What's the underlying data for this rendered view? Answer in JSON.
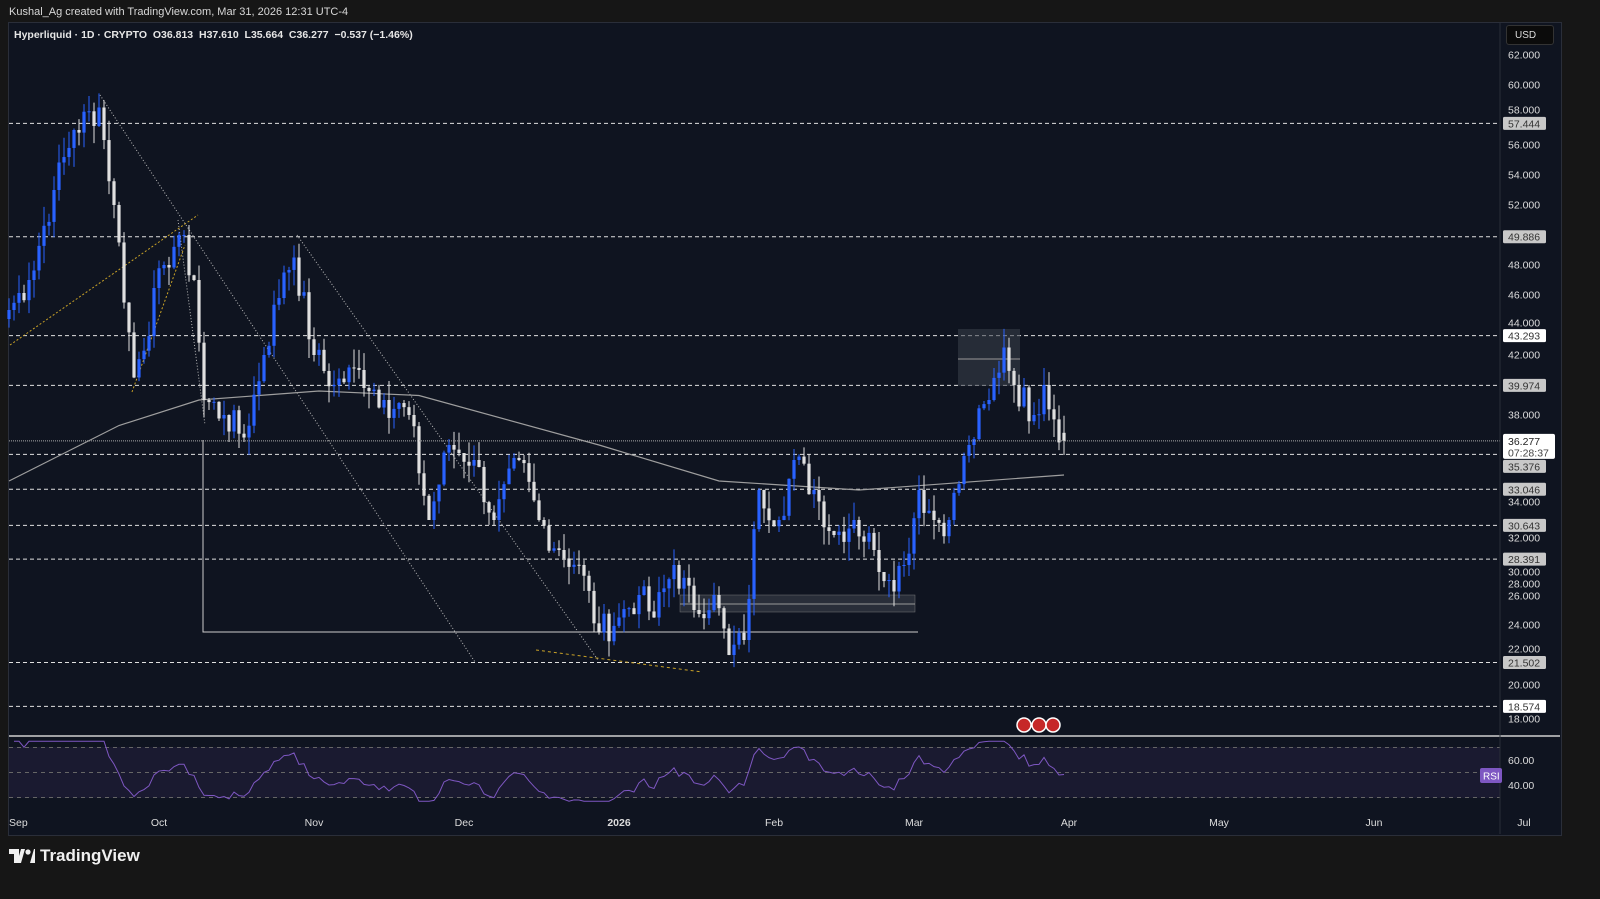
{
  "credit": "Kushal_Ag created with TradingView.com, Mar 31, 2026 12:31 UTC-4",
  "legend": {
    "symbol": "Hyperliquid · 1D · CRYPTO",
    "open": "O36.813",
    "high": "H37.610",
    "low": "L35.664",
    "close": "C36.277",
    "change": "−0.537 (−1.46%)"
  },
  "currency": "USD",
  "brand": "TradingView",
  "colors": {
    "up": "#2962ff",
    "down": "#e0e0e0",
    "background": "#0f1420",
    "rsi": "#7e57c2",
    "ma": "#9e9e9e"
  },
  "chart_data": {
    "type": "candlestick",
    "title": "Hyperliquid · 1D · CRYPTO",
    "ylim": [
      17,
      63
    ],
    "price_ticks": [
      "62.000",
      "60.000",
      "58.000",
      "56.000",
      "54.000",
      "52.000",
      "48.000",
      "46.000",
      "44.000",
      "42.000",
      "38.000",
      "34.000",
      "32.000",
      "30.000",
      "28.000",
      "26.000",
      "24.000",
      "22.000",
      "20.000",
      "18.000"
    ],
    "time_ticks": [
      {
        "label": "Sep",
        "date": "2025-09-01"
      },
      {
        "label": "Oct",
        "date": "2025-10-01"
      },
      {
        "label": "Nov",
        "date": "2025-11-01"
      },
      {
        "label": "Dec",
        "date": "2025-12-01"
      },
      {
        "label": "2026",
        "date": "2026-01-01",
        "bold": true
      },
      {
        "label": "Feb",
        "date": "2026-02-01"
      },
      {
        "label": "Mar",
        "date": "2026-03-01"
      },
      {
        "label": "Apr",
        "date": "2026-04-01"
      },
      {
        "label": "May",
        "date": "2026-05-01"
      },
      {
        "label": "Jun",
        "date": "2026-06-01"
      },
      {
        "label": "Jul",
        "date": "2026-07-01"
      }
    ],
    "x_range": [
      "2025-09-01",
      "2026-07-10"
    ],
    "approx_closes": [
      [
        "2025-09-01",
        45
      ],
      [
        "2025-09-05",
        47
      ],
      [
        "2025-09-10",
        53
      ],
      [
        "2025-09-14",
        57
      ],
      [
        "2025-09-19",
        58.5
      ],
      [
        "2025-09-22",
        52
      ],
      [
        "2025-09-26",
        40.5
      ],
      [
        "2025-10-02",
        48
      ],
      [
        "2025-10-05",
        50
      ],
      [
        "2025-10-08",
        47
      ],
      [
        "2025-10-10",
        39
      ],
      [
        "2025-10-14",
        38
      ],
      [
        "2025-10-18",
        36.5
      ],
      [
        "2025-10-22",
        42
      ],
      [
        "2025-10-26",
        47.5
      ],
      [
        "2025-10-28",
        48.5
      ],
      [
        "2025-11-01",
        42
      ],
      [
        "2025-11-05",
        40
      ],
      [
        "2025-11-10",
        41
      ],
      [
        "2025-11-15",
        39
      ],
      [
        "2025-11-20",
        38
      ],
      [
        "2025-11-24",
        31
      ],
      [
        "2025-11-28",
        36
      ],
      [
        "2025-12-03",
        35
      ],
      [
        "2025-12-07",
        31
      ],
      [
        "2025-12-12",
        35
      ],
      [
        "2025-12-16",
        31
      ],
      [
        "2025-12-20",
        29
      ],
      [
        "2025-12-24",
        28
      ],
      [
        "2025-12-28",
        23.5
      ],
      [
        "2026-01-01",
        24.5
      ],
      [
        "2026-01-05",
        26
      ],
      [
        "2026-01-08",
        24.5
      ],
      [
        "2026-01-12",
        28
      ],
      [
        "2026-01-16",
        25
      ],
      [
        "2026-01-20",
        26
      ],
      [
        "2026-01-23",
        22
      ],
      [
        "2026-01-26",
        23
      ],
      [
        "2026-01-29",
        33
      ],
      [
        "2026-02-02",
        31
      ],
      [
        "2026-02-05",
        35
      ],
      [
        "2026-02-09",
        33
      ],
      [
        "2026-02-13",
        30
      ],
      [
        "2026-02-17",
        31
      ],
      [
        "2026-02-21",
        29
      ],
      [
        "2026-02-24",
        27
      ],
      [
        "2026-02-27",
        28
      ],
      [
        "2026-03-02",
        33
      ],
      [
        "2026-03-05",
        31
      ],
      [
        "2026-03-08",
        31
      ],
      [
        "2026-03-12",
        36
      ],
      [
        "2026-03-16",
        39
      ],
      [
        "2026-03-19",
        42.5
      ],
      [
        "2026-03-21",
        40
      ],
      [
        "2026-03-25",
        38
      ],
      [
        "2026-03-27",
        40
      ],
      [
        "2026-03-31",
        36.277
      ]
    ],
    "moving_average": [
      [
        "2025-09-01",
        33.6
      ],
      [
        "2025-09-23",
        37.3
      ],
      [
        "2025-10-09",
        39
      ],
      [
        "2025-11-02",
        39.6
      ],
      [
        "2025-11-22",
        39.3
      ],
      [
        "2025-12-28",
        36
      ],
      [
        "2026-01-21",
        33.6
      ],
      [
        "2026-02-18",
        33
      ],
      [
        "2026-03-31",
        34
      ]
    ],
    "horizontal_levels": [
      "57.444",
      "49.886",
      "43.293",
      "39.974",
      "35.376",
      "33.046",
      "30.643",
      "28.391",
      "21.502",
      "18.574"
    ],
    "highlighted_levels": [
      "43.293",
      "18.574"
    ],
    "last_price": "36.277",
    "countdown": "07:28:37",
    "rsi": {
      "label": "RSI",
      "ticks": [
        "60.00",
        "40.00"
      ],
      "bands": [
        70,
        50,
        30
      ]
    }
  }
}
